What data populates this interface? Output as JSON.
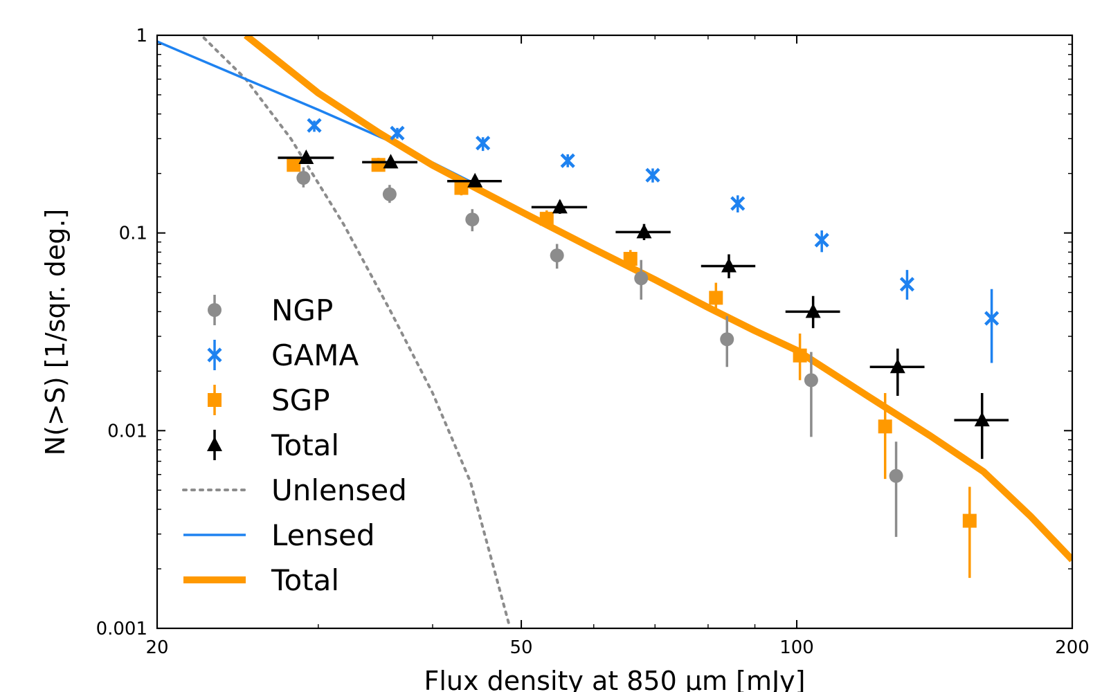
{
  "chart_data": {
    "type": "scatter",
    "xlabel": "Flux density at 850 μm [mJy]",
    "ylabel": "N(>S) [1/sqr. deg.]",
    "xscale": "log",
    "yscale": "log",
    "xlim": [
      20,
      200
    ],
    "ylim": [
      0.001,
      1
    ],
    "x_ticks": [
      20,
      50,
      100,
      200
    ],
    "x_tick_labels": [
      "20",
      "50",
      "100",
      "200"
    ],
    "y_ticks": [
      0.001,
      0.01,
      0.1,
      1
    ],
    "y_tick_labels": [
      "0.001",
      "0.01",
      "0.1",
      "1"
    ],
    "grid": false,
    "legend_position": "lower-left",
    "series": [
      {
        "name": "NGP",
        "kind": "points",
        "marker": "circle",
        "color": "#8c8c8c",
        "points": [
          {
            "x": 28.9,
            "y": 0.19,
            "ylo": 0.17,
            "yhi": 0.215
          },
          {
            "x": 35.9,
            "y": 0.157,
            "ylo": 0.142,
            "yhi": 0.175
          },
          {
            "x": 44.2,
            "y": 0.117,
            "ylo": 0.102,
            "yhi": 0.132
          },
          {
            "x": 54.7,
            "y": 0.077,
            "ylo": 0.066,
            "yhi": 0.088
          },
          {
            "x": 67.6,
            "y": 0.059,
            "ylo": 0.046,
            "yhi": 0.073
          },
          {
            "x": 83.9,
            "y": 0.029,
            "ylo": 0.021,
            "yhi": 0.038
          },
          {
            "x": 103.7,
            "y": 0.018,
            "ylo": 0.0093,
            "yhi": 0.025
          },
          {
            "x": 128.4,
            "y": 0.0059,
            "ylo": 0.0029,
            "yhi": 0.0088
          }
        ]
      },
      {
        "name": "GAMA",
        "kind": "points",
        "marker": "x",
        "color": "#1e82f0",
        "points": [
          {
            "x": 29.7,
            "y": 0.35,
            "ylo": 0.325,
            "yhi": 0.37
          },
          {
            "x": 36.6,
            "y": 0.32,
            "ylo": 0.3,
            "yhi": 0.34
          },
          {
            "x": 45.4,
            "y": 0.285,
            "ylo": 0.26,
            "yhi": 0.305
          },
          {
            "x": 56.2,
            "y": 0.232,
            "ylo": 0.215,
            "yhi": 0.25
          },
          {
            "x": 69.6,
            "y": 0.196,
            "ylo": 0.18,
            "yhi": 0.212
          },
          {
            "x": 86.2,
            "y": 0.141,
            "ylo": 0.127,
            "yhi": 0.155
          },
          {
            "x": 106.5,
            "y": 0.092,
            "ylo": 0.08,
            "yhi": 0.103
          },
          {
            "x": 132.0,
            "y": 0.055,
            "ylo": 0.046,
            "yhi": 0.065
          },
          {
            "x": 163.3,
            "y": 0.037,
            "ylo": 0.022,
            "yhi": 0.052
          }
        ]
      },
      {
        "name": "SGP",
        "kind": "points",
        "marker": "square",
        "color": "#ff9900",
        "points": [
          {
            "x": 28.2,
            "y": 0.221,
            "ylo": 0.205,
            "yhi": 0.24
          },
          {
            "x": 34.9,
            "y": 0.221,
            "ylo": 0.205,
            "yhi": 0.24
          },
          {
            "x": 43.0,
            "y": 0.169,
            "ylo": 0.155,
            "yhi": 0.184
          },
          {
            "x": 53.3,
            "y": 0.118,
            "ylo": 0.107,
            "yhi": 0.13
          },
          {
            "x": 65.8,
            "y": 0.074,
            "ylo": 0.066,
            "yhi": 0.082
          },
          {
            "x": 81.6,
            "y": 0.047,
            "ylo": 0.039,
            "yhi": 0.056
          },
          {
            "x": 100.8,
            "y": 0.024,
            "ylo": 0.018,
            "yhi": 0.031
          },
          {
            "x": 124.9,
            "y": 0.0105,
            "ylo": 0.0057,
            "yhi": 0.0155
          },
          {
            "x": 154.5,
            "y": 0.0035,
            "ylo": 0.0018,
            "yhi": 0.0052
          }
        ]
      },
      {
        "name": "Total",
        "kind": "points",
        "marker": "triangle",
        "color": "#000000",
        "points": [
          {
            "x": 29.1,
            "y": 0.24,
            "ylo": 0.228,
            "yhi": 0.252,
            "xlo": 27.1,
            "xhi": 31.2
          },
          {
            "x": 36.0,
            "y": 0.228,
            "ylo": 0.216,
            "yhi": 0.24,
            "xlo": 33.5,
            "xhi": 38.5
          },
          {
            "x": 44.5,
            "y": 0.183,
            "ylo": 0.172,
            "yhi": 0.195,
            "xlo": 41.5,
            "xhi": 47.6
          },
          {
            "x": 55.1,
            "y": 0.135,
            "ylo": 0.125,
            "yhi": 0.146,
            "xlo": 51.3,
            "xhi": 59.0
          },
          {
            "x": 68.1,
            "y": 0.101,
            "ylo": 0.092,
            "yhi": 0.111,
            "xlo": 63.4,
            "xhi": 72.8
          },
          {
            "x": 84.3,
            "y": 0.068,
            "ylo": 0.059,
            "yhi": 0.078,
            "xlo": 78.6,
            "xhi": 90.1
          },
          {
            "x": 104.2,
            "y": 0.04,
            "ylo": 0.033,
            "yhi": 0.048,
            "xlo": 97.2,
            "xhi": 111.5
          },
          {
            "x": 128.9,
            "y": 0.021,
            "ylo": 0.015,
            "yhi": 0.026,
            "xlo": 120.2,
            "xhi": 137.9
          },
          {
            "x": 159.4,
            "y": 0.0113,
            "ylo": 0.0072,
            "yhi": 0.0155,
            "xlo": 148.6,
            "xhi": 170.4
          }
        ]
      },
      {
        "name": "Unlensed",
        "kind": "line",
        "style": "dotted",
        "color": "#8c8c8c",
        "x": [
          22.5,
          25,
          28,
          32,
          36,
          40,
          44,
          48.5
        ],
        "y": [
          0.97,
          0.6,
          0.3,
          0.11,
          0.04,
          0.0155,
          0.0055,
          0.00104
        ]
      },
      {
        "name": "Lensed",
        "kind": "line",
        "style": "solid",
        "color": "#1e82f0",
        "x": [
          20,
          25,
          30,
          36,
          44
        ],
        "y": [
          0.93,
          0.6,
          0.42,
          0.29,
          0.182
        ]
      },
      {
        "name": "Total",
        "kind": "line",
        "style": "thick",
        "color": "#ff9900",
        "x": [
          25,
          30,
          35,
          40,
          45,
          50,
          60,
          70,
          80,
          90,
          100,
          120,
          140,
          160,
          180,
          200
        ],
        "y": [
          1.0,
          0.51,
          0.32,
          0.22,
          0.165,
          0.128,
          0.083,
          0.058,
          0.042,
          0.032,
          0.0255,
          0.0148,
          0.0094,
          0.0062,
          0.0037,
          0.00222
        ]
      }
    ]
  }
}
